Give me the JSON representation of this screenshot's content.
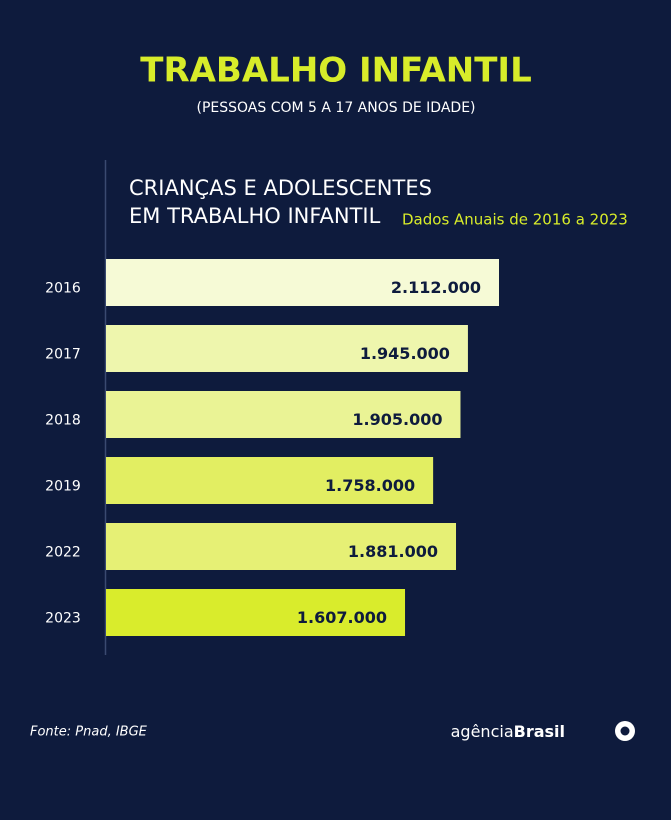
{
  "chart_data": {
    "type": "hbar",
    "title": "TRABALHO INFANTIL",
    "subtitle": "(PESSOAS COM 5 A 17 ANOS DE IDADE)",
    "heading": [
      "CRIANÇAS E ADOLESCENTES",
      "EM TRABALHO INFANTIL"
    ],
    "note": "Dados Anuais de 2016 a 2023",
    "categories": [
      "2016",
      "2017",
      "2018",
      "2019",
      "2022",
      "2023"
    ],
    "values": [
      2112000,
      1945000,
      1905000,
      1758000,
      1881000,
      1607000
    ],
    "value_labels": [
      "2.112.000",
      "1.945.000",
      "1.905.000",
      "1.758.000",
      "1.881.000",
      "1.607.000"
    ],
    "colors": [
      "#f6fad6",
      "#eef6ad",
      "#eaf395",
      "#e2ee62",
      "#e6f075",
      "#d9ec2c"
    ],
    "source": "Fonte:  Pnad, IBGE",
    "brand": [
      "agência",
      "Brasil"
    ]
  }
}
